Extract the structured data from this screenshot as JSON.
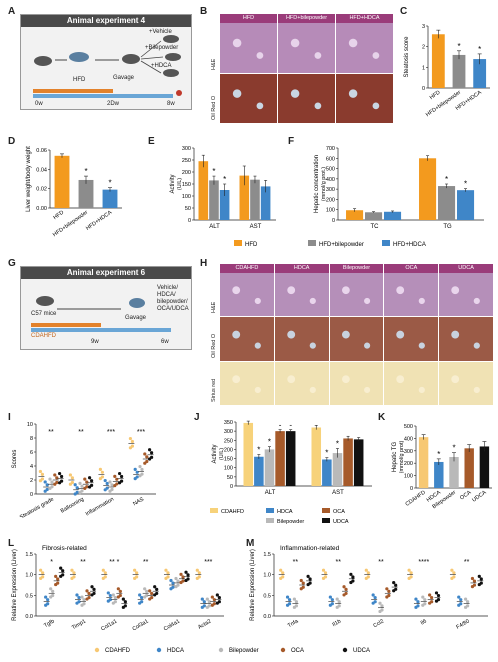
{
  "panels": {
    "A": "A",
    "B": "B",
    "C": "C",
    "D": "D",
    "E": "E",
    "F": "F",
    "G": "G",
    "H": "H",
    "I": "I",
    "J": "J",
    "K": "K",
    "L": "L",
    "M": "M"
  },
  "exp4": {
    "title": "Animal experiment 4",
    "hfd": "HFD",
    "gavage": "Gavage",
    "vehicle": "+Vehicle",
    "bilepowder": "+Bilepowder",
    "hdca": "+HDCA",
    "t0": "0w",
    "t1": "2Dw",
    "t2": "8w"
  },
  "exp6": {
    "title": "Animal experiment 6",
    "mice": "C57 mice",
    "gavage": "Gavage",
    "treat": "Vehicle/ HDCA/ bilepowder/ OCA/UDCA",
    "diet": "CDAHFD",
    "t1": "9w",
    "t2": "6w"
  },
  "histoB": {
    "cols": [
      "HFD",
      "HFD+bilepowder",
      "HFD+HDCA"
    ],
    "rows": [
      "H&E",
      "Oil Red O"
    ]
  },
  "histoH": {
    "cols": [
      "CDAHFD",
      "HDCA",
      "Bilepowder",
      "OCA",
      "UDCA"
    ],
    "rows": [
      "H&E",
      "Oil Red O",
      "Sirius red"
    ]
  },
  "chartC": {
    "type": "bar",
    "ylabel": "Steatosis score",
    "categories": [
      "HFD",
      "HFD+bilepowder",
      "HFD+HDCA"
    ],
    "values": [
      2.6,
      1.6,
      1.4
    ],
    "errors": [
      0.2,
      0.2,
      0.25
    ],
    "ylim": [
      0,
      3
    ],
    "ticks": [
      "0",
      "1",
      "2",
      "3"
    ],
    "sig": [
      "",
      "*",
      "*"
    ],
    "colors": [
      "#f39a1e",
      "#8c8c8c",
      "#3f86c8"
    ]
  },
  "chartD": {
    "type": "bar",
    "ylabel": "Liver weight/body weight",
    "categories": [
      "HFD",
      "HFD+bilepowder",
      "HFD+HDCA"
    ],
    "values": [
      0.054,
      0.029,
      0.019
    ],
    "errors": [
      0.002,
      0.004,
      0.002
    ],
    "ylim": [
      0,
      0.06
    ],
    "ticks": [
      "0.00",
      "0.02",
      "0.04",
      "0.06"
    ],
    "sig": [
      "",
      "*",
      "*"
    ],
    "colors": [
      "#f39a1e",
      "#8c8c8c",
      "#3f86c8"
    ]
  },
  "chartE": {
    "type": "bar",
    "ylabel": "Activity",
    "unit": "(U/L)",
    "categories": [
      "ALT",
      "AST"
    ],
    "series": [
      {
        "name": "HFD",
        "values": [
          245,
          185
        ],
        "errors": [
          25,
          40
        ]
      },
      {
        "name": "HFD+bilepowder",
        "values": [
          165,
          168
        ],
        "errors": [
          18,
          15
        ]
      },
      {
        "name": "HFD+HDCA",
        "values": [
          125,
          140
        ],
        "errors": [
          25,
          25
        ]
      }
    ],
    "sig": [
      [
        "",
        "*",
        "*"
      ],
      [
        "",
        "",
        ""
      ]
    ],
    "ylim": [
      0,
      300
    ],
    "ticks": [
      "0",
      "50",
      "100",
      "150",
      "200",
      "250",
      "300"
    ],
    "colors": [
      "#f39a1e",
      "#8c8c8c",
      "#3f86c8"
    ]
  },
  "chartF": {
    "type": "bar",
    "ylabel": "Hepatic concentration",
    "unit": "(mmol/g prot.)",
    "categories": [
      "TC",
      "TG"
    ],
    "series": [
      {
        "name": "HFD",
        "values": [
          95,
          600
        ],
        "errors": [
          15,
          25
        ]
      },
      {
        "name": "HFD+bilepowder",
        "values": [
          75,
          330
        ],
        "errors": [
          6,
          20
        ]
      },
      {
        "name": "HFD+HDCA",
        "values": [
          80,
          290
        ],
        "errors": [
          8,
          15
        ]
      }
    ],
    "sig": [
      [
        "",
        "",
        ""
      ],
      [
        "",
        "*",
        "*"
      ]
    ],
    "ylim": [
      0,
      700
    ],
    "ticks": [
      "0",
      "100",
      "200",
      "300",
      "400",
      "500",
      "600",
      "700"
    ],
    "colors": [
      "#f39a1e",
      "#8c8c8c",
      "#3f86c8"
    ]
  },
  "legendEF": [
    "HFD",
    "HFD+bilepowder",
    "HFD+HDCA"
  ],
  "chartI": {
    "type": "scatter",
    "ylabel": "Scores",
    "categories": [
      "Steatosis grade",
      "Ballooning",
      "Inflammation",
      "NAS"
    ],
    "series": [
      {
        "name": "CDAHFD",
        "means": [
          2.5,
          2.0,
          2.8,
          7.2
        ]
      },
      {
        "name": "HDCA",
        "means": [
          1.0,
          0.6,
          1.2,
          2.8
        ]
      },
      {
        "name": "Bilepowder",
        "means": [
          1.4,
          0.8,
          1.0,
          3.2
        ]
      },
      {
        "name": "OCA",
        "means": [
          2.0,
          1.4,
          1.8,
          5.0
        ]
      },
      {
        "name": "UDCA",
        "means": [
          2.2,
          1.6,
          2.2,
          5.6
        ]
      }
    ],
    "sig": [
      "**",
      "**",
      "***",
      "***"
    ],
    "ylim": [
      0,
      10
    ],
    "ticks": [
      "0",
      "2",
      "4",
      "6",
      "8",
      "10"
    ],
    "colors": [
      "#f7c873",
      "#3f86c8",
      "#b9b9b9",
      "#a65a2a",
      "#111111"
    ]
  },
  "chartJ": {
    "type": "bar",
    "ylabel": "Activity",
    "unit": "(U/L)",
    "categories": [
      "ALT",
      "AST"
    ],
    "series": [
      {
        "name": "CDAHFD",
        "values": [
          345,
          320
        ],
        "errors": [
          10,
          12
        ]
      },
      {
        "name": "HDCA",
        "values": [
          160,
          145
        ],
        "errors": [
          12,
          10
        ]
      },
      {
        "name": "Bilepowder",
        "values": [
          200,
          180
        ],
        "errors": [
          15,
          25
        ]
      },
      {
        "name": "OCA",
        "values": [
          300,
          260
        ],
        "errors": [
          8,
          12
        ]
      },
      {
        "name": "UDCA",
        "values": [
          300,
          255
        ],
        "errors": [
          8,
          10
        ]
      }
    ],
    "sig": [
      [
        "",
        "*",
        "*",
        "-",
        "-"
      ],
      [
        "",
        "*",
        "*",
        "",
        ""
      ]
    ],
    "ylim": [
      0,
      350
    ],
    "ticks": [
      "0",
      "50",
      "100",
      "150",
      "200",
      "250",
      "300",
      "350"
    ],
    "colors": [
      "#f7d27a",
      "#3f86c8",
      "#b9b9b9",
      "#a65a2a",
      "#111111"
    ]
  },
  "legendJ": [
    "CDAHFD",
    "HDCA",
    "OCA",
    "Bilepowder",
    "UDCA"
  ],
  "chartK": {
    "type": "bar",
    "ylabel": "Hepatic TG",
    "unit": "(mmol/g prot)",
    "categories": [
      "CDAHFD",
      "HDCA",
      "Bilepowder",
      "OCA",
      "UDCA"
    ],
    "values": [
      410,
      210,
      250,
      320,
      335
    ],
    "errors": [
      20,
      25,
      35,
      30,
      40
    ],
    "sig": [
      "",
      "*",
      "*",
      "",
      ""
    ],
    "ylim": [
      0,
      500
    ],
    "ticks": [
      "0",
      "100",
      "200",
      "300",
      "400",
      "500"
    ],
    "colors": [
      "#f7c873",
      "#3f86c8",
      "#b9b9b9",
      "#a65a2a",
      "#111111"
    ]
  },
  "chartL": {
    "type": "scatter",
    "title": "Fibrosis-related",
    "ylabel": "Relative Expression (Liver)",
    "categories": [
      "Tgfb",
      "Timp1",
      "Col1a1",
      "Col3a1",
      "Col4a1",
      "Acta2"
    ],
    "series": [
      {
        "name": "CDAHFD",
        "means": [
          1.0,
          1.0,
          1.0,
          1.0,
          1.0,
          1.0
        ]
      },
      {
        "name": "HDCA",
        "means": [
          0.35,
          0.4,
          0.45,
          0.4,
          0.75,
          0.3
        ]
      },
      {
        "name": "Bilepowder",
        "means": [
          0.55,
          0.35,
          0.4,
          0.55,
          0.8,
          0.3
        ]
      },
      {
        "name": "OCA",
        "means": [
          0.85,
          0.5,
          0.55,
          0.5,
          0.9,
          0.35
        ]
      },
      {
        "name": "UDCA",
        "means": [
          1.05,
          0.6,
          0.3,
          0.6,
          0.95,
          0.4
        ]
      }
    ],
    "sig": [
      "*",
      "**",
      "** *",
      "**",
      "",
      "***"
    ],
    "ylim": [
      0,
      1.5
    ],
    "ticks": [
      "0.0",
      "0.5",
      "1.0",
      "1.5"
    ],
    "colors": [
      "#f7c873",
      "#3f86c8",
      "#b9b9b9",
      "#a65a2a",
      "#111111"
    ]
  },
  "chartM": {
    "type": "scatter",
    "title": "Inflammation-related",
    "ylabel": "Relative Expression (Liver)",
    "categories": [
      "Tnfa",
      "Il1b",
      "Ccl2",
      "Il6",
      "F4/80"
    ],
    "series": [
      {
        "name": "CDAHFD",
        "means": [
          1.0,
          1.0,
          1.0,
          1.0,
          1.0
        ]
      },
      {
        "name": "HDCA",
        "means": [
          0.35,
          0.35,
          0.4,
          0.3,
          0.35
        ]
      },
      {
        "name": "Bilepowder",
        "means": [
          0.3,
          0.3,
          0.2,
          0.35,
          0.3
        ]
      },
      {
        "name": "OCA",
        "means": [
          0.75,
          0.6,
          0.55,
          0.4,
          0.8
        ]
      },
      {
        "name": "UDCA",
        "means": [
          0.85,
          0.9,
          0.7,
          0.45,
          0.85
        ]
      }
    ],
    "sig": [
      "**",
      "**",
      "**",
      "****",
      "**"
    ],
    "ylim": [
      0,
      1.5
    ],
    "ticks": [
      "0.0",
      "0.5",
      "1.0",
      "1.5"
    ],
    "colors": [
      "#f7c873",
      "#3f86c8",
      "#b9b9b9",
      "#a65a2a",
      "#111111"
    ]
  },
  "legendLM": [
    "CDAHFD",
    "HDCA",
    "Bilepowder",
    "OCA",
    "UDCA"
  ]
}
